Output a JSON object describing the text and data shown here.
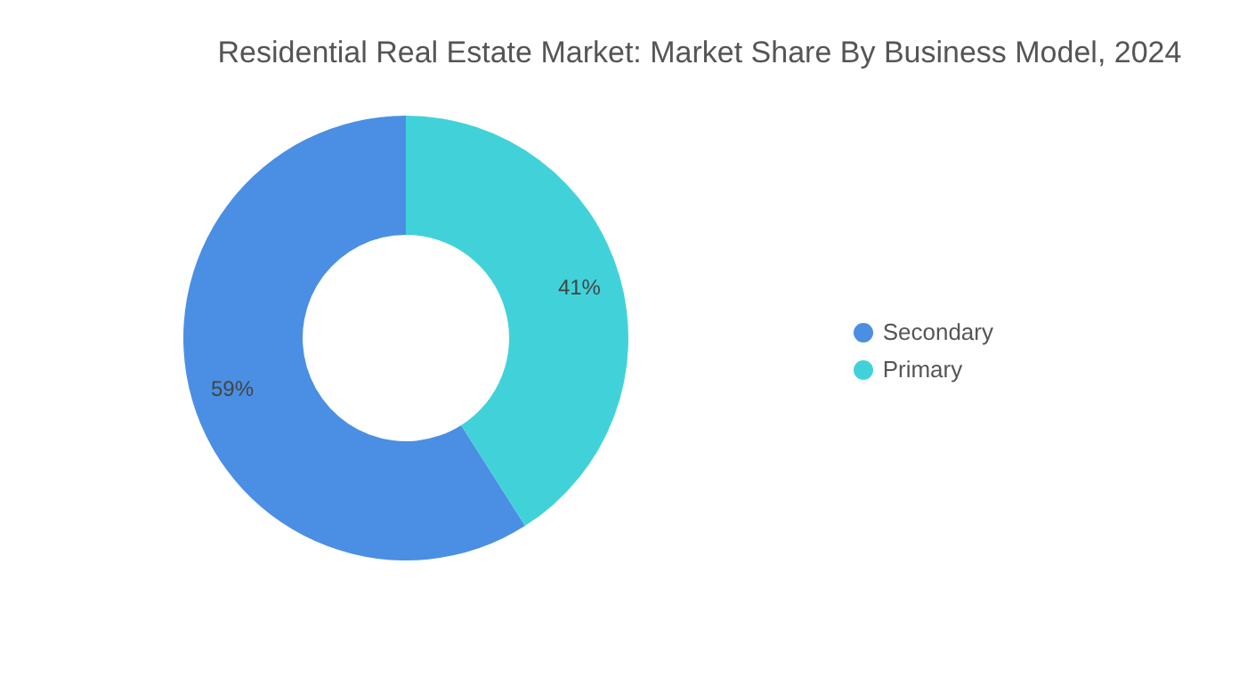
{
  "chart_data": {
    "type": "donut",
    "title": "Residential Real Estate Market: Market Share By Business Model, 2024",
    "categories": [
      "Secondary",
      "Primary"
    ],
    "values": [
      59,
      41
    ],
    "colors": [
      "#4a8fe3",
      "#41d2d9"
    ],
    "value_labels": [
      "59%",
      "41%"
    ],
    "legend": "right"
  }
}
